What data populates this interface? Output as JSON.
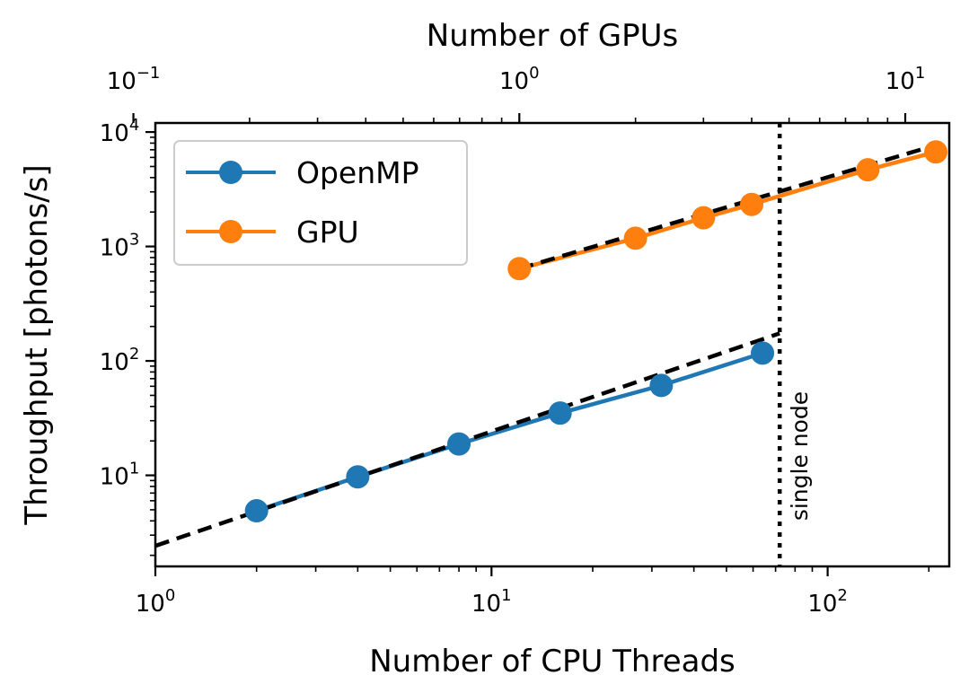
{
  "chart_data": {
    "type": "line",
    "scale": "log-log",
    "xlabel": "Number of CPU Threads",
    "ylabel": "Throughput [photons/s]",
    "x2label": "Number of GPUs",
    "xlim": [
      1,
      230
    ],
    "ylim": [
      1.6,
      12000
    ],
    "x2lim": [
      0.114,
      13.0
    ],
    "x_ticks": [
      1,
      10,
      100
    ],
    "x_ticklabels": [
      "10",
      "10",
      "10"
    ],
    "x_tick_exps": [
      "0",
      "1",
      "2"
    ],
    "y_ticks": [
      10,
      100,
      1000,
      10000
    ],
    "y_ticklabels": [
      "10",
      "10",
      "10",
      "10"
    ],
    "y_tick_exps": [
      "1",
      "2",
      "3",
      "4"
    ],
    "x2_ticks": [
      0.1,
      1,
      10
    ],
    "x2_ticklabels": [
      "10",
      "10",
      "10"
    ],
    "x2_tick_exps": [
      "−1",
      "0",
      "1"
    ],
    "vline": {
      "x": 72,
      "style": "dotted",
      "label": "single node"
    },
    "series": [
      {
        "name": "OpenMP",
        "axis": "bottom",
        "color": "#1f77b4",
        "x": [
          2,
          4,
          8,
          16,
          32,
          64
        ],
        "y": [
          4.9,
          9.7,
          18.8,
          35,
          61,
          117
        ]
      },
      {
        "name": "GPU",
        "axis": "top",
        "color": "#ff7f0e",
        "x": [
          1,
          2,
          3,
          4,
          8,
          12
        ],
        "y": [
          640,
          1180,
          1780,
          2330,
          4680,
          6700
        ]
      }
    ],
    "fits": [
      {
        "axis": "bottom",
        "color": "#000000",
        "style": "dashed",
        "x": [
          1,
          72
        ],
        "y": [
          2.42,
          174
        ]
      },
      {
        "axis": "top",
        "color": "#000000",
        "style": "dashed",
        "x": [
          1,
          12.3
        ],
        "y": [
          640,
          7870
        ]
      }
    ],
    "legend": {
      "position": "upper-left",
      "entries": [
        "OpenMP",
        "GPU"
      ]
    }
  }
}
